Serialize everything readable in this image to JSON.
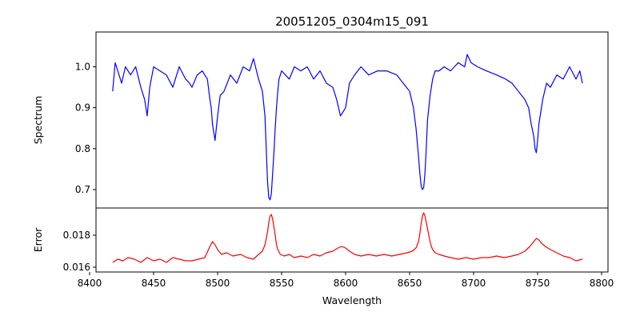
{
  "chart_data": [
    {
      "type": "line",
      "title": "20051205_0304m15_091",
      "xlabel": "",
      "ylabel": "Spectrum",
      "xlim": [
        8405,
        8805
      ],
      "ylim": [
        0.655,
        1.085
      ],
      "xticks": [
        8400,
        8450,
        8500,
        8550,
        8600,
        8650,
        8700,
        8750,
        8800
      ],
      "yticks": [
        0.7,
        0.8,
        0.9,
        1.0
      ],
      "ytick_labels": [
        "0.7",
        "0.8",
        "0.9",
        "1.0"
      ],
      "grid": false,
      "series": [
        {
          "color": "#0000ff",
          "x": [
            8418,
            8420,
            8422,
            8425,
            8428,
            8432,
            8436,
            8440,
            8443,
            8445,
            8447,
            8450,
            8455,
            8460,
            8465,
            8470,
            8475,
            8478,
            8480,
            8484,
            8488,
            8492,
            8494,
            8495,
            8496,
            8497,
            8498,
            8499,
            8500,
            8502,
            8505,
            8510,
            8515,
            8520,
            8525,
            8528,
            8532,
            8535,
            8537,
            8538,
            8539,
            8540,
            8541,
            8542,
            8543,
            8544,
            8545,
            8546,
            8547,
            8548,
            8550,
            8553,
            8556,
            8560,
            8565,
            8570,
            8575,
            8580,
            8585,
            8590,
            8593,
            8596,
            8598,
            8600,
            8603,
            8607,
            8612,
            8618,
            8625,
            8632,
            8640,
            8645,
            8650,
            8653,
            8655,
            8657,
            8658,
            8659,
            8660,
            8661,
            8662,
            8663,
            8664,
            8665,
            8666,
            8667,
            8668,
            8670,
            8673,
            8677,
            8682,
            8688,
            8693,
            8695,
            8698,
            8703,
            8710,
            8718,
            8725,
            8730,
            8735,
            8740,
            8743,
            8745,
            8747,
            8748,
            8749,
            8750,
            8751,
            8752,
            8754,
            8757,
            8760,
            8765,
            8770,
            8775,
            8780,
            8783,
            8785
          ],
          "y": [
            0.94,
            1.01,
            0.99,
            0.96,
            1.0,
            0.98,
            1.0,
            0.95,
            0.92,
            0.88,
            0.95,
            1.0,
            0.99,
            0.98,
            0.95,
            1.0,
            0.97,
            0.96,
            0.95,
            0.98,
            0.99,
            0.97,
            0.92,
            0.9,
            0.86,
            0.84,
            0.82,
            0.85,
            0.88,
            0.93,
            0.94,
            0.98,
            0.96,
            1.0,
            0.99,
            1.02,
            0.97,
            0.94,
            0.88,
            0.8,
            0.72,
            0.68,
            0.675,
            0.69,
            0.74,
            0.79,
            0.85,
            0.9,
            0.94,
            0.97,
            0.99,
            0.98,
            0.97,
            1.0,
            0.99,
            1.0,
            0.97,
            0.99,
            0.96,
            0.95,
            0.92,
            0.88,
            0.89,
            0.9,
            0.96,
            0.98,
            1.0,
            0.98,
            0.99,
            0.99,
            0.98,
            0.96,
            0.94,
            0.9,
            0.85,
            0.78,
            0.74,
            0.71,
            0.7,
            0.705,
            0.74,
            0.8,
            0.87,
            0.9,
            0.93,
            0.95,
            0.97,
            0.99,
            0.99,
            1.0,
            0.99,
            1.01,
            1.0,
            1.03,
            1.01,
            1.0,
            0.99,
            0.98,
            0.97,
            0.96,
            0.94,
            0.92,
            0.9,
            0.86,
            0.83,
            0.8,
            0.79,
            0.82,
            0.86,
            0.88,
            0.92,
            0.96,
            0.95,
            0.98,
            0.97,
            1.0,
            0.97,
            0.99,
            0.96
          ]
        }
      ]
    },
    {
      "type": "line",
      "title": "",
      "xlabel": "Wavelength",
      "ylabel": "Error",
      "xlim": [
        8405,
        8805
      ],
      "ylim": [
        0.0157,
        0.0197
      ],
      "xticks": [
        8400,
        8450,
        8500,
        8550,
        8600,
        8650,
        8700,
        8750,
        8800
      ],
      "yticks": [
        0.016,
        0.018
      ],
      "ytick_labels": [
        "0.016",
        "0.018"
      ],
      "grid": false,
      "series": [
        {
          "color": "#ff0000",
          "x": [
            8418,
            8422,
            8426,
            8430,
            8435,
            8440,
            8445,
            8450,
            8455,
            8460,
            8465,
            8470,
            8475,
            8480,
            8485,
            8490,
            8494,
            8496,
            8498,
            8500,
            8503,
            8507,
            8512,
            8518,
            8523,
            8528,
            8532,
            8535,
            8537,
            8539,
            8540,
            8541,
            8542,
            8543,
            8544,
            8545,
            8546,
            8547,
            8549,
            8552,
            8556,
            8560,
            8565,
            8570,
            8575,
            8580,
            8585,
            8590,
            8594,
            8597,
            8600,
            8603,
            8607,
            8612,
            8618,
            8624,
            8630,
            8636,
            8642,
            8648,
            8652,
            8655,
            8657,
            8658,
            8659,
            8660,
            8661,
            8662,
            8663,
            8664,
            8665,
            8666,
            8667,
            8668,
            8670,
            8673,
            8677,
            8682,
            8688,
            8694,
            8700,
            8706,
            8712,
            8718,
            8724,
            8730,
            8735,
            8740,
            8744,
            8747,
            8749,
            8751,
            8753,
            8756,
            8760,
            8765,
            8770,
            8775,
            8780,
            8785
          ],
          "y": [
            0.0163,
            0.0165,
            0.0164,
            0.0166,
            0.0165,
            0.0163,
            0.0166,
            0.0164,
            0.0165,
            0.0163,
            0.0166,
            0.0165,
            0.0164,
            0.0164,
            0.0165,
            0.0166,
            0.0173,
            0.0176,
            0.0174,
            0.0171,
            0.0168,
            0.0169,
            0.0167,
            0.0168,
            0.0166,
            0.0165,
            0.0168,
            0.017,
            0.0174,
            0.0182,
            0.0188,
            0.0192,
            0.0193,
            0.019,
            0.0185,
            0.018,
            0.0174,
            0.0171,
            0.0168,
            0.0167,
            0.0168,
            0.0166,
            0.0167,
            0.0166,
            0.0168,
            0.0167,
            0.0169,
            0.017,
            0.0172,
            0.0173,
            0.0172,
            0.017,
            0.0168,
            0.0167,
            0.0168,
            0.0167,
            0.0168,
            0.0167,
            0.0168,
            0.0169,
            0.017,
            0.0172,
            0.0176,
            0.0181,
            0.0187,
            0.0192,
            0.0194,
            0.0192,
            0.0188,
            0.0184,
            0.018,
            0.0176,
            0.0173,
            0.0171,
            0.0169,
            0.0168,
            0.0167,
            0.0166,
            0.0165,
            0.0166,
            0.0165,
            0.0166,
            0.0166,
            0.0167,
            0.0166,
            0.0167,
            0.0168,
            0.017,
            0.0173,
            0.0176,
            0.0178,
            0.0177,
            0.0175,
            0.0173,
            0.0171,
            0.0169,
            0.0167,
            0.0166,
            0.0164,
            0.0165
          ]
        }
      ]
    }
  ]
}
